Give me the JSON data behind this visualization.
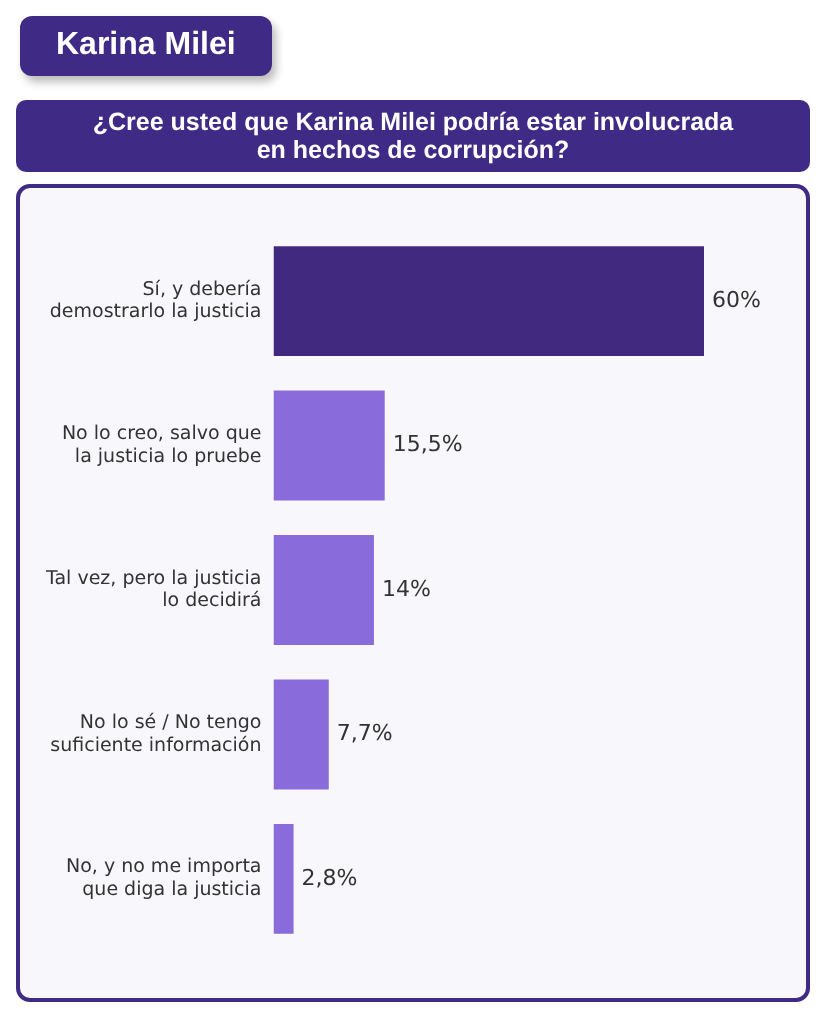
{
  "chart_data": {
    "type": "bar",
    "orientation": "horizontal",
    "title": "Karina Milei",
    "subtitle": "¿Cree usted que Karina Milei podría estar involucrada\nen hechos de corrupción?",
    "categories": [
      "Sí, y debería\ndemostrarlo la justicia",
      "No lo creo, salvo que\nla justicia lo pruebe",
      "Tal vez, pero la justicia\nlo decidirá",
      "No lo sé / No tengo\nsuficiente información",
      "No, y no me importa\nque diga la justicia"
    ],
    "values": [
      60,
      15.5,
      14,
      7.7,
      2.8
    ],
    "colors": [
      "#41297f",
      "#8a6bdb",
      "#8a6bdb",
      "#8a6bdb",
      "#8a6bdb"
    ],
    "value_labels": [
      "60%",
      "15,5%",
      "14%",
      "7,7%",
      "2,8%"
    ],
    "tick_labels": "y",
    "grid": false,
    "legend": false
  }
}
